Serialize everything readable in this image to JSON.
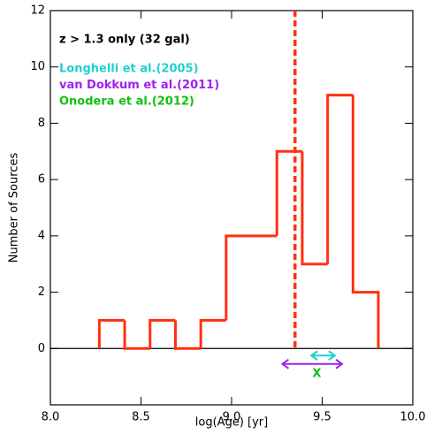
{
  "chart_data": {
    "type": "histogram",
    "annotation": "z > 1.3 only (32 gal)",
    "xlabel": "log(Age)  [yr]",
    "ylabel": "Number of Sources",
    "bins": [
      8.27,
      8.41,
      8.55,
      8.69,
      8.83,
      8.97,
      9.11,
      9.25,
      9.39,
      9.53,
      9.67,
      9.81
    ],
    "counts": [
      1,
      0,
      1,
      0,
      1,
      4,
      4,
      7,
      3,
      9,
      2
    ],
    "color": "#ff3010",
    "vline": 9.35,
    "vline_color": "#ff3010",
    "series": [
      {
        "name": "Longhelli et al.(2005)",
        "color": "#20d0d0",
        "values": [
          9.44,
          9.57
        ],
        "y": -0.25
      },
      {
        "name": "van Dokkum et al.(2011)",
        "color": "#a020f0",
        "values": [
          9.28,
          9.61
        ],
        "y": -0.55
      },
      {
        "name": "Onodera et al.(2012)",
        "color": "#10c010",
        "values": [
          9.47
        ],
        "y": -0.9,
        "marker": "X"
      }
    ],
    "xlim": [
      8.0,
      10.0
    ],
    "xticks": [
      {
        "value": 8.0,
        "label": "8.0"
      },
      {
        "value": 8.5,
        "label": "8.5"
      },
      {
        "value": 9.0,
        "label": "9.0"
      },
      {
        "value": 9.5,
        "label": "9.5"
      },
      {
        "value": 10.0,
        "label": "10.0"
      }
    ],
    "ylim": [
      -2,
      12
    ],
    "yticks": [
      0,
      2,
      4,
      6,
      8,
      10,
      12
    ]
  }
}
